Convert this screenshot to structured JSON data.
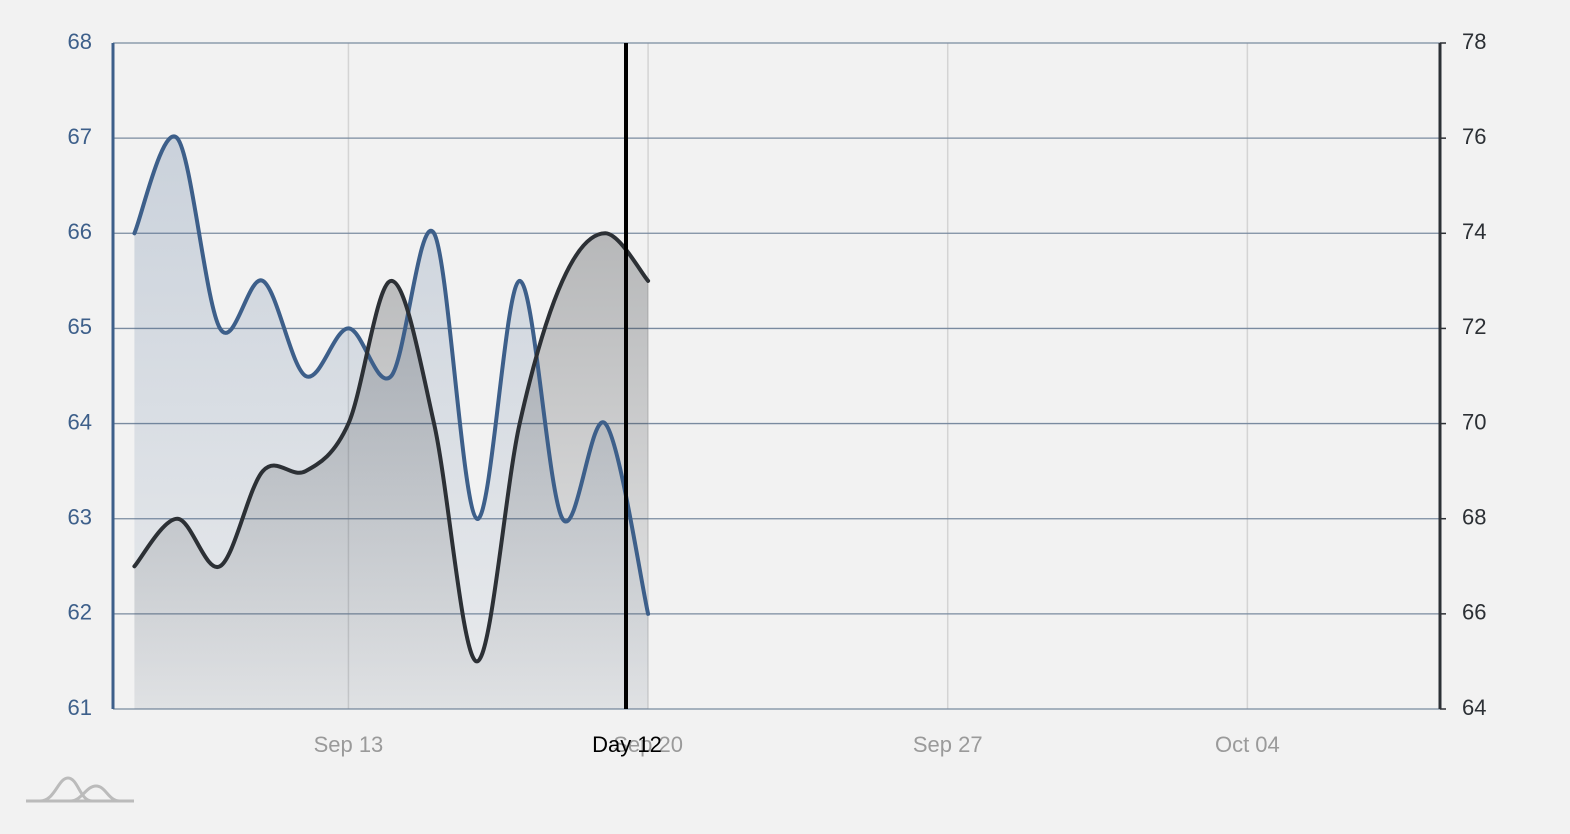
{
  "chart_data": {
    "type": "line",
    "x": [
      "Sep 08",
      "Sep 09",
      "Sep 10",
      "Sep 11",
      "Sep 12",
      "Sep 13",
      "Sep 14",
      "Sep 15",
      "Sep 16",
      "Sep 17",
      "Sep 18",
      "Sep 19",
      "Sep 20"
    ],
    "xlim": [
      "Sep 08",
      "Oct 08"
    ],
    "xticks": [
      "Sep 13",
      "Sep 20",
      "Sep 27",
      "Oct 04"
    ],
    "ylim": [
      61,
      68
    ],
    "yticks": [
      61,
      62,
      63,
      64,
      65,
      66,
      67,
      68
    ],
    "y2lim": [
      64,
      78
    ],
    "y2ticks": [
      64,
      66,
      68,
      70,
      72,
      74,
      76,
      78
    ],
    "grid": true,
    "area": true,
    "series": [
      {
        "color": "#3d5f8a",
        "values": [
          66,
          67,
          65,
          65.5,
          64.5,
          65,
          64.5,
          66,
          63,
          65.5,
          63,
          64,
          62
        ]
      },
      {
        "color": "#2c3035",
        "axis": "y2",
        "values": [
          67,
          68,
          67,
          69,
          69,
          70,
          73,
          70,
          65,
          70,
          73,
          74,
          73
        ]
      }
    ],
    "annotations": [
      {
        "text": "Day 12"
      }
    ]
  }
}
